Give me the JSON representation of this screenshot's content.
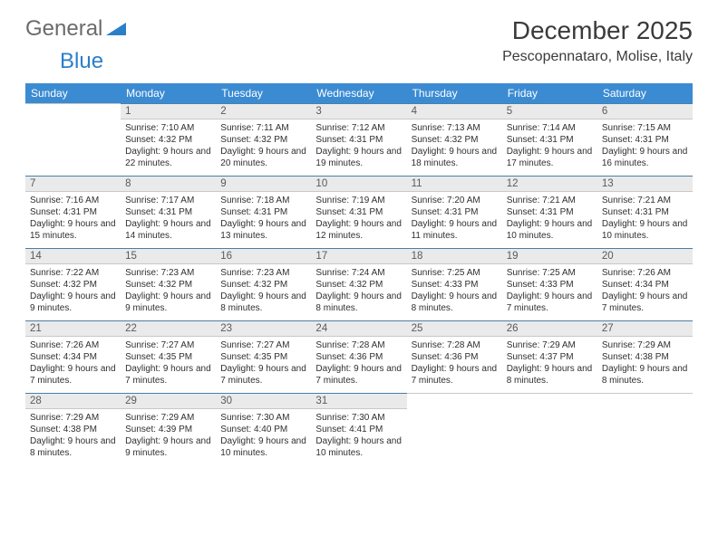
{
  "logo": {
    "word1": "General",
    "word2": "Blue"
  },
  "title": "December 2025",
  "location": "Pescopennataro, Molise, Italy",
  "header_bg": "#3b8bd2",
  "header_fg": "#ffffff",
  "daynum_bg": "#eaeaea",
  "rule_color": "#4a7fa8",
  "text_color": "#333333",
  "day_headers": [
    "Sunday",
    "Monday",
    "Tuesday",
    "Wednesday",
    "Thursday",
    "Friday",
    "Saturday"
  ],
  "weeks": [
    [
      {
        "n": "",
        "sunrise": "",
        "sunset": "",
        "daylight": ""
      },
      {
        "n": "1",
        "sunrise": "7:10 AM",
        "sunset": "4:32 PM",
        "daylight": "9 hours and 22 minutes."
      },
      {
        "n": "2",
        "sunrise": "7:11 AM",
        "sunset": "4:32 PM",
        "daylight": "9 hours and 20 minutes."
      },
      {
        "n": "3",
        "sunrise": "7:12 AM",
        "sunset": "4:31 PM",
        "daylight": "9 hours and 19 minutes."
      },
      {
        "n": "4",
        "sunrise": "7:13 AM",
        "sunset": "4:32 PM",
        "daylight": "9 hours and 18 minutes."
      },
      {
        "n": "5",
        "sunrise": "7:14 AM",
        "sunset": "4:31 PM",
        "daylight": "9 hours and 17 minutes."
      },
      {
        "n": "6",
        "sunrise": "7:15 AM",
        "sunset": "4:31 PM",
        "daylight": "9 hours and 16 minutes."
      }
    ],
    [
      {
        "n": "7",
        "sunrise": "7:16 AM",
        "sunset": "4:31 PM",
        "daylight": "9 hours and 15 minutes."
      },
      {
        "n": "8",
        "sunrise": "7:17 AM",
        "sunset": "4:31 PM",
        "daylight": "9 hours and 14 minutes."
      },
      {
        "n": "9",
        "sunrise": "7:18 AM",
        "sunset": "4:31 PM",
        "daylight": "9 hours and 13 minutes."
      },
      {
        "n": "10",
        "sunrise": "7:19 AM",
        "sunset": "4:31 PM",
        "daylight": "9 hours and 12 minutes."
      },
      {
        "n": "11",
        "sunrise": "7:20 AM",
        "sunset": "4:31 PM",
        "daylight": "9 hours and 11 minutes."
      },
      {
        "n": "12",
        "sunrise": "7:21 AM",
        "sunset": "4:31 PM",
        "daylight": "9 hours and 10 minutes."
      },
      {
        "n": "13",
        "sunrise": "7:21 AM",
        "sunset": "4:31 PM",
        "daylight": "9 hours and 10 minutes."
      }
    ],
    [
      {
        "n": "14",
        "sunrise": "7:22 AM",
        "sunset": "4:32 PM",
        "daylight": "9 hours and 9 minutes."
      },
      {
        "n": "15",
        "sunrise": "7:23 AM",
        "sunset": "4:32 PM",
        "daylight": "9 hours and 9 minutes."
      },
      {
        "n": "16",
        "sunrise": "7:23 AM",
        "sunset": "4:32 PM",
        "daylight": "9 hours and 8 minutes."
      },
      {
        "n": "17",
        "sunrise": "7:24 AM",
        "sunset": "4:32 PM",
        "daylight": "9 hours and 8 minutes."
      },
      {
        "n": "18",
        "sunrise": "7:25 AM",
        "sunset": "4:33 PM",
        "daylight": "9 hours and 8 minutes."
      },
      {
        "n": "19",
        "sunrise": "7:25 AM",
        "sunset": "4:33 PM",
        "daylight": "9 hours and 7 minutes."
      },
      {
        "n": "20",
        "sunrise": "7:26 AM",
        "sunset": "4:34 PM",
        "daylight": "9 hours and 7 minutes."
      }
    ],
    [
      {
        "n": "21",
        "sunrise": "7:26 AM",
        "sunset": "4:34 PM",
        "daylight": "9 hours and 7 minutes."
      },
      {
        "n": "22",
        "sunrise": "7:27 AM",
        "sunset": "4:35 PM",
        "daylight": "9 hours and 7 minutes."
      },
      {
        "n": "23",
        "sunrise": "7:27 AM",
        "sunset": "4:35 PM",
        "daylight": "9 hours and 7 minutes."
      },
      {
        "n": "24",
        "sunrise": "7:28 AM",
        "sunset": "4:36 PM",
        "daylight": "9 hours and 7 minutes."
      },
      {
        "n": "25",
        "sunrise": "7:28 AM",
        "sunset": "4:36 PM",
        "daylight": "9 hours and 7 minutes."
      },
      {
        "n": "26",
        "sunrise": "7:29 AM",
        "sunset": "4:37 PM",
        "daylight": "9 hours and 8 minutes."
      },
      {
        "n": "27",
        "sunrise": "7:29 AM",
        "sunset": "4:38 PM",
        "daylight": "9 hours and 8 minutes."
      }
    ],
    [
      {
        "n": "28",
        "sunrise": "7:29 AM",
        "sunset": "4:38 PM",
        "daylight": "9 hours and 8 minutes."
      },
      {
        "n": "29",
        "sunrise": "7:29 AM",
        "sunset": "4:39 PM",
        "daylight": "9 hours and 9 minutes."
      },
      {
        "n": "30",
        "sunrise": "7:30 AM",
        "sunset": "4:40 PM",
        "daylight": "9 hours and 10 minutes."
      },
      {
        "n": "31",
        "sunrise": "7:30 AM",
        "sunset": "4:41 PM",
        "daylight": "9 hours and 10 minutes."
      },
      {
        "n": "",
        "sunrise": "",
        "sunset": "",
        "daylight": ""
      },
      {
        "n": "",
        "sunrise": "",
        "sunset": "",
        "daylight": ""
      },
      {
        "n": "",
        "sunrise": "",
        "sunset": "",
        "daylight": ""
      }
    ]
  ],
  "labels": {
    "sunrise": "Sunrise:",
    "sunset": "Sunset:",
    "daylight": "Daylight:"
  }
}
